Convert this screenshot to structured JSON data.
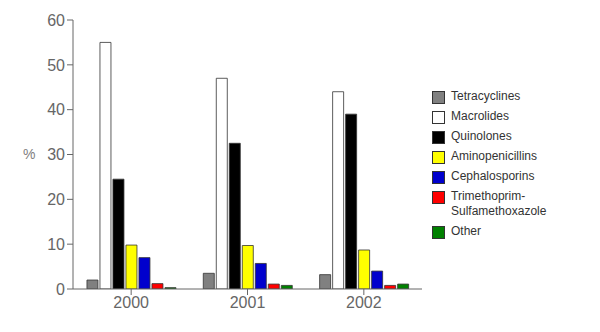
{
  "chart_data": {
    "type": "bar",
    "categories": [
      "2000",
      "2001",
      "2002"
    ],
    "series": [
      {
        "name": "Tetracyclines",
        "color": "#808080",
        "values": [
          2,
          3.5,
          3.2
        ]
      },
      {
        "name": "Macrolides",
        "color": "#ffffff",
        "values": [
          55,
          47,
          44
        ]
      },
      {
        "name": "Quinolones",
        "color": "#000000",
        "values": [
          24.5,
          32.5,
          39
        ]
      },
      {
        "name": "Aminopenicillins",
        "color": "#ffff00",
        "values": [
          9.8,
          9.7,
          8.7
        ]
      },
      {
        "name": "Cephalosporins",
        "color": "#0000cd",
        "values": [
          7,
          5.7,
          4.0
        ]
      },
      {
        "name": "Trimethoprim-\nSulfamethoxazole",
        "color": "#ff0000",
        "values": [
          1.2,
          1.1,
          0.8
        ]
      },
      {
        "name": "Other",
        "color": "#008000",
        "values": [
          0.3,
          0.8,
          1.1
        ]
      }
    ],
    "ylabel": "%",
    "ylim": [
      0,
      60
    ],
    "yticks": [
      0,
      10,
      20,
      30,
      40,
      50,
      60
    ],
    "grid": false,
    "legend": "right"
  }
}
